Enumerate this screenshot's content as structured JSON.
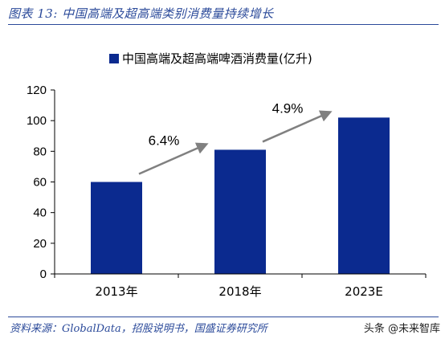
{
  "figure": {
    "title": "图表 13:  中国高端及超高端类别消费量持续增长",
    "source": "资料来源：GlobalData，招股说明书，国盛证券研究所",
    "watermark": "头条 @未来智库"
  },
  "colors": {
    "bar": "#0b2a8f",
    "arrow": "#808080",
    "rule": "#2b4a9a",
    "title": "#2b4a9a"
  },
  "chart_data": {
    "type": "bar",
    "categories": [
      "2013年",
      "2018年",
      "2023E"
    ],
    "series": [
      {
        "name": "中国高端及超高端啤酒消费量(亿升)",
        "values": [
          60,
          81,
          102
        ]
      }
    ],
    "ylim": [
      0,
      120
    ],
    "yticks": [
      0,
      20,
      40,
      60,
      80,
      100,
      120
    ],
    "legend": "top-center",
    "grid": false,
    "annotations": [
      {
        "text": "6.4%",
        "from": 0,
        "to": 1
      },
      {
        "text": "4.9%",
        "from": 1,
        "to": 2
      }
    ]
  }
}
